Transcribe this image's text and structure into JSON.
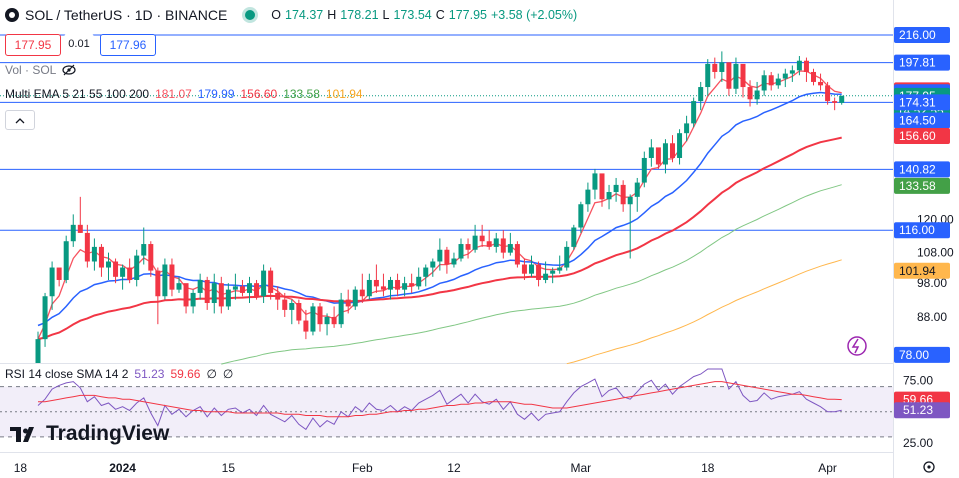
{
  "header": {
    "title": "SOL / TetherUS · 1D · BINANCE",
    "open_label": "O",
    "open": "174.37",
    "high_label": "H",
    "high": "178.21",
    "low_label": "L",
    "low": "173.54",
    "close_label": "C",
    "close": "177.95",
    "change": "+3.58 (+2.05%)"
  },
  "trade": {
    "sell_price": "177.95",
    "spread": "0.01",
    "buy_price": "177.96"
  },
  "volume_legend": {
    "label": "Vol · SOL"
  },
  "ema_legend": {
    "label": "Multi EMA 5 21 55 100 200",
    "values": [
      "181.07",
      "179.99",
      "156.60",
      "133.58",
      "101.94"
    ]
  },
  "rsi_legend": {
    "label": "RSI 14 close SMA 14 2",
    "values": [
      "51.23",
      "59.66",
      "∅",
      "∅"
    ]
  },
  "logo_text": "TradingView",
  "colors": {
    "up": "#089981",
    "down": "#f23645",
    "ema5": "#f7525f",
    "ema21": "#2962ff",
    "ema55": "#f23645",
    "ema100": "#81c784",
    "ema200": "#ffb74d",
    "rsi": "#7e57c2",
    "rsi_ma": "#f23645",
    "hline": "#2962ff"
  },
  "chart_data": [
    {
      "type": "candlestick",
      "title": "SOL / TetherUS · 1D · BINANCE",
      "price_axis_ticks": [
        216.0,
        197.81,
        181.07,
        179.99,
        177.95,
        174.31,
        164.5,
        156.6,
        140.82,
        133.58,
        120.0,
        116.0,
        108.0,
        101.94,
        98.0,
        88.0,
        78.0
      ],
      "price_axis_scale": "log",
      "price_range": [
        76,
        228
      ],
      "x_ticks": [
        "18",
        "2024",
        "15",
        "Feb",
        "12",
        "Mar",
        "18",
        "Apr"
      ],
      "horizontal_levels": [
        216.0,
        197.81,
        174.31,
        140.82,
        116.0
      ],
      "price_labels": [
        {
          "text": "216.00",
          "value": 216.0,
          "kind": "level"
        },
        {
          "text": "197.81",
          "value": 197.81,
          "kind": "level"
        },
        {
          "text": "181.07",
          "value": 181.07,
          "kind": "ema5"
        },
        {
          "text": "179.99",
          "value": 179.99,
          "kind": "ema21"
        },
        {
          "text": "177.95",
          "value": 177.95,
          "kind": "last",
          "countdown": "14:52:55"
        },
        {
          "text": "174.31",
          "value": 174.31,
          "kind": "level"
        },
        {
          "text": "164.50",
          "value": 164.5,
          "kind": "level"
        },
        {
          "text": "156.60",
          "value": 156.6,
          "kind": "ema55"
        },
        {
          "text": "140.82",
          "value": 140.82,
          "kind": "level"
        },
        {
          "text": "133.58",
          "value": 133.58,
          "kind": "ema100"
        },
        {
          "text": "116.00",
          "value": 116.0,
          "kind": "level"
        },
        {
          "text": "101.94",
          "value": 101.94,
          "kind": "ema200"
        },
        {
          "text": "78.00",
          "value": 78.0,
          "kind": "level"
        }
      ],
      "candles_ohlc": [
        [
          76,
          84,
          74,
          82
        ],
        [
          82,
          95,
          80,
          94
        ],
        [
          94,
          105,
          90,
          103
        ],
        [
          103,
          101,
          97,
          99
        ],
        [
          99,
          114,
          98,
          112
        ],
        [
          112,
          122,
          110,
          118
        ],
        [
          118,
          129,
          115,
          115
        ],
        [
          115,
          118,
          103,
          105
        ],
        [
          105,
          113,
          102,
          110
        ],
        [
          110,
          111,
          100,
          103
        ],
        [
          103,
          108,
          99,
          105
        ],
        [
          105,
          106,
          98,
          100
        ],
        [
          100,
          104,
          96,
          103
        ],
        [
          103,
          106,
          98,
          99
        ],
        [
          99,
          109,
          97,
          107
        ],
        [
          107,
          117,
          104,
          111
        ],
        [
          111,
          112,
          100,
          102
        ],
        [
          102,
          103,
          86,
          94
        ],
        [
          94,
          106,
          93,
          104
        ],
        [
          104,
          106,
          94,
          96
        ],
        [
          96,
          100,
          95,
          98
        ],
        [
          98,
          97,
          89,
          91
        ],
        [
          91,
          96,
          89,
          95
        ],
        [
          95,
          101,
          93,
          99
        ],
        [
          99,
          100,
          90,
          92
        ],
        [
          92,
          101,
          89,
          98
        ],
        [
          98,
          100,
          89,
          91
        ],
        [
          91,
          98,
          90,
          96
        ],
        [
          96,
          101,
          93,
          97
        ],
        [
          97,
          99,
          94,
          95
        ],
        [
          95,
          100,
          92,
          98
        ],
        [
          98,
          99,
          93,
          94
        ],
        [
          94,
          104,
          92,
          102
        ],
        [
          102,
          103,
          93,
          95
        ],
        [
          95,
          97,
          90,
          93
        ],
        [
          93,
          95,
          88,
          90
        ],
        [
          90,
          93,
          86,
          92
        ],
        [
          92,
          93,
          86,
          87
        ],
        [
          87,
          90,
          82,
          84
        ],
        [
          84,
          92,
          83,
          91
        ],
        [
          91,
          92,
          84,
          86
        ],
        [
          86,
          89,
          83,
          88
        ],
        [
          88,
          91,
          85,
          86
        ],
        [
          86,
          95,
          85,
          93
        ],
        [
          93,
          96,
          89,
          91
        ],
        [
          91,
          97,
          90,
          96
        ],
        [
          96,
          101,
          92,
          94
        ],
        [
          94,
          101,
          93,
          99
        ],
        [
          99,
          104,
          95,
          97
        ],
        [
          97,
          101,
          94,
          96
        ],
        [
          96,
          100,
          93,
          99
        ],
        [
          99,
          101,
          94,
          96
        ],
        [
          96,
          100,
          94,
          98
        ],
        [
          98,
          101,
          95,
          97
        ],
        [
          97,
          103,
          96,
          100
        ],
        [
          100,
          104,
          97,
          103
        ],
        [
          103,
          106,
          100,
          105
        ],
        [
          105,
          113,
          102,
          109
        ],
        [
          109,
          110,
          101,
          104
        ],
        [
          104,
          108,
          103,
          106
        ],
        [
          106,
          113,
          105,
          111
        ],
        [
          111,
          113,
          106,
          109
        ],
        [
          109,
          118,
          108,
          114
        ],
        [
          114,
          118,
          110,
          112
        ],
        [
          112,
          116,
          109,
          110
        ],
        [
          110,
          115,
          108,
          113
        ],
        [
          113,
          116,
          106,
          108
        ],
        [
          108,
          115,
          107,
          111
        ],
        [
          111,
          112,
          103,
          104
        ],
        [
          104,
          106,
          99,
          101
        ],
        [
          101,
          107,
          100,
          104
        ],
        [
          104,
          105,
          97,
          99
        ],
        [
          99,
          105,
          98,
          101
        ],
        [
          101,
          103,
          98,
          102
        ],
        [
          102,
          107,
          101,
          103
        ],
        [
          103,
          112,
          102,
          110
        ],
        [
          110,
          118,
          109,
          117
        ],
        [
          117,
          127,
          115,
          126
        ],
        [
          126,
          135,
          123,
          132
        ],
        [
          132,
          141,
          128,
          139
        ],
        [
          139,
          132,
          125,
          128
        ],
        [
          128,
          134,
          124,
          131
        ],
        [
          131,
          137,
          127,
          134
        ],
        [
          134,
          136,
          123,
          126
        ],
        [
          126,
          130,
          106,
          129
        ],
        [
          129,
          137,
          123,
          135
        ],
        [
          135,
          149,
          133,
          146
        ],
        [
          146,
          155,
          142,
          151
        ],
        [
          151,
          147,
          141,
          143
        ],
        [
          143,
          155,
          139,
          153
        ],
        [
          153,
          157,
          144,
          146
        ],
        [
          146,
          160,
          143,
          158
        ],
        [
          158,
          167,
          154,
          163
        ],
        [
          163,
          177,
          161,
          175
        ],
        [
          175,
          186,
          170,
          183
        ],
        [
          183,
          200,
          178,
          197
        ],
        [
          197,
          201,
          188,
          192
        ],
        [
          192,
          205,
          186,
          198
        ],
        [
          198,
          188,
          178,
          182
        ],
        [
          182,
          201,
          179,
          197
        ],
        [
          197,
          194,
          177,
          183
        ],
        [
          183,
          187,
          172,
          176
        ],
        [
          176,
          186,
          173,
          181
        ],
        [
          181,
          193,
          178,
          190
        ],
        [
          190,
          192,
          181,
          184
        ],
        [
          184,
          191,
          182,
          188
        ],
        [
          188,
          194,
          183,
          191
        ],
        [
          191,
          196,
          186,
          193
        ],
        [
          193,
          202,
          190,
          199
        ],
        [
          199,
          201,
          186,
          192
        ],
        [
          192,
          194,
          184,
          186
        ],
        [
          186,
          191,
          181,
          184
        ],
        [
          184,
          186,
          173,
          175
        ],
        [
          175,
          177,
          170,
          174
        ],
        [
          174,
          178,
          173,
          178
        ]
      ]
    },
    {
      "type": "line",
      "title": "RSI 14 close SMA 14 2",
      "y_ticks": [
        75.0,
        59.66,
        51.23,
        25.0
      ],
      "band": [
        30,
        70
      ],
      "series": [
        {
          "name": "RSI",
          "last": 51.23,
          "values": [
            55,
            60,
            68,
            71,
            73,
            74,
            69,
            58,
            62,
            55,
            57,
            52,
            54,
            51,
            57,
            61,
            49,
            39,
            55,
            48,
            52,
            46,
            51,
            54,
            46,
            53,
            47,
            52,
            53,
            49,
            52,
            47,
            55,
            48,
            45,
            42,
            47,
            40,
            36,
            45,
            38,
            43,
            40,
            50,
            46,
            54,
            50,
            57,
            52,
            51,
            55,
            50,
            54,
            51,
            57,
            60,
            63,
            67,
            56,
            60,
            64,
            57,
            64,
            58,
            56,
            60,
            52,
            58,
            48,
            44,
            49,
            43,
            48,
            49,
            50,
            58,
            65,
            70,
            73,
            76,
            62,
            67,
            69,
            62,
            60,
            66,
            72,
            75,
            67,
            72,
            64,
            70,
            74,
            78,
            80,
            84,
            84,
            84,
            68,
            74,
            63,
            58,
            59,
            65,
            60,
            62,
            63,
            64,
            66,
            60,
            57,
            54,
            50,
            50,
            51.23
          ]
        },
        {
          "name": "RSI-based MA",
          "last": 59.66,
          "values": [
            58,
            58,
            59,
            60,
            61,
            62,
            63,
            63,
            63,
            62,
            61,
            61,
            60,
            60,
            59,
            58,
            57,
            56,
            55,
            54,
            53,
            52,
            51,
            51,
            50,
            50,
            50,
            50,
            49,
            49,
            49,
            49,
            49,
            49,
            49,
            48,
            48,
            48,
            47,
            47,
            47,
            46,
            46,
            46,
            46,
            47,
            47,
            48,
            48,
            49,
            50,
            50,
            51,
            51,
            52,
            52,
            53,
            54,
            55,
            55,
            56,
            56,
            57,
            57,
            58,
            58,
            58,
            58,
            57,
            56,
            56,
            55,
            54,
            53,
            53,
            53,
            54,
            55,
            56,
            57,
            58,
            59,
            60,
            61,
            62,
            63,
            64,
            65,
            66,
            67,
            68,
            69,
            70,
            71,
            72,
            73,
            74,
            74,
            73,
            72,
            71,
            70,
            69,
            68,
            67,
            66,
            65,
            64,
            64,
            63,
            62,
            61,
            60,
            60,
            59.66
          ]
        }
      ]
    }
  ]
}
